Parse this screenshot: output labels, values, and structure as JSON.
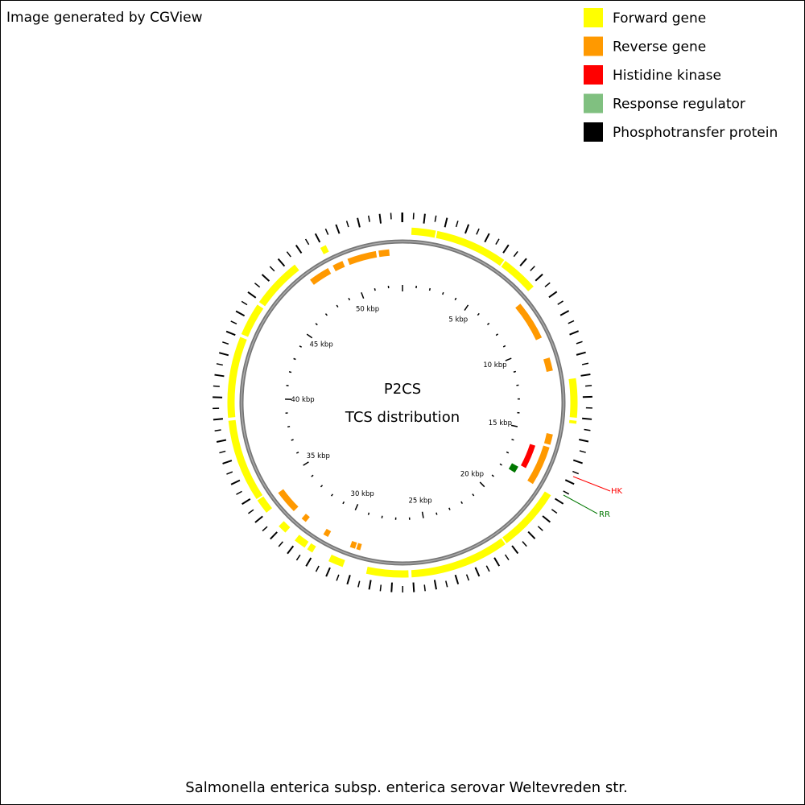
{
  "header": {
    "title": "Image generated by CGView"
  },
  "legend": {
    "items": [
      {
        "label": "Forward gene",
        "color": "#ffff00"
      },
      {
        "label": "Reverse gene",
        "color": "#ff9900"
      },
      {
        "label": "Histidine kinase",
        "color": "#ff0000"
      },
      {
        "label": "Response regulator",
        "color": "#80c080"
      },
      {
        "label": "Phosphotransfer protein",
        "color": "#000000"
      }
    ]
  },
  "map": {
    "title": "P2CS",
    "subtitle": "TCS distribution",
    "scale_labels": [
      "5 kbp",
      "10 kbp",
      "15 kbp",
      "20 kbp",
      "25 kbp",
      "30 kbp",
      "35 kbp",
      "40 kbp",
      "45 kbp",
      "50 kbp"
    ],
    "annotations": [
      "HK",
      "RR"
    ]
  },
  "footer": {
    "text": "Salmonella enterica subsp. enterica serovar Weltevreden str."
  }
}
